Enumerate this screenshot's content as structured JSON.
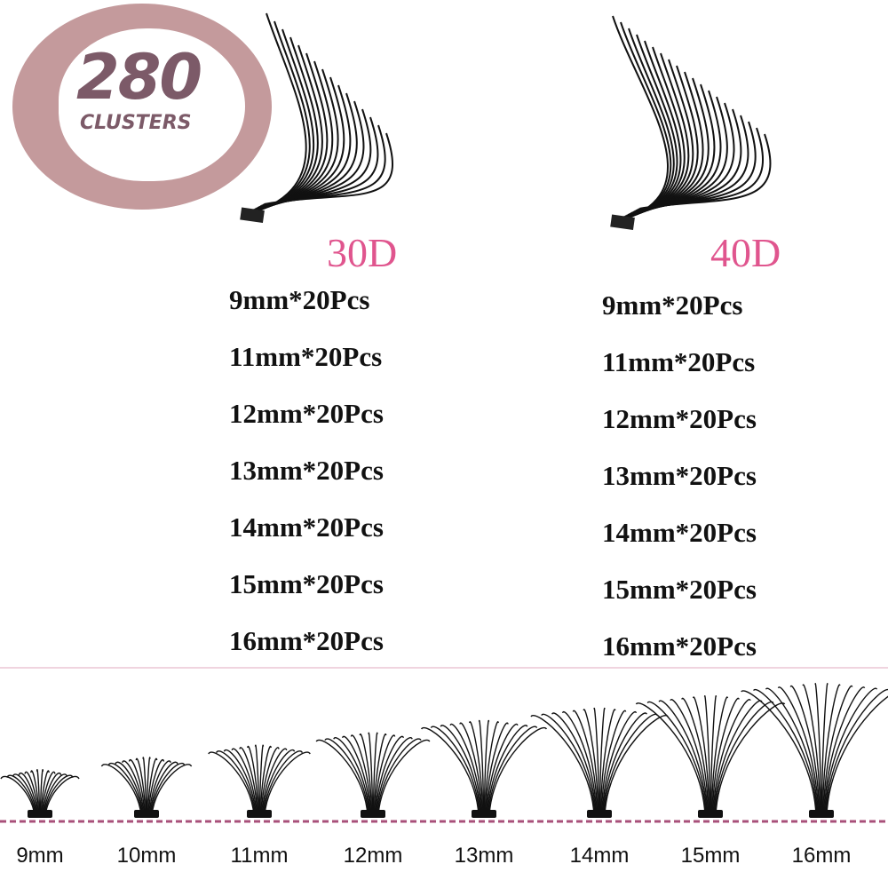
{
  "badge": {
    "count": "280",
    "unit": "CLUSTERS",
    "color": "#c49a9c",
    "text_color": "#7c5a68"
  },
  "products": [
    {
      "label": "30D",
      "specs": [
        "9mm*20Pcs",
        "11mm*20Pcs",
        "12mm*20Pcs",
        "13mm*20Pcs",
        "14mm*20Pcs",
        "15mm*20Pcs",
        "16mm*20Pcs"
      ]
    },
    {
      "label": "40D",
      "specs": [
        "9mm*20Pcs",
        "11mm*20Pcs",
        "12mm*20Pcs",
        "13mm*20Pcs",
        "14mm*20Pcs",
        "15mm*20Pcs",
        "16mm*20Pcs"
      ]
    }
  ],
  "accent_color": "#e0558e",
  "length_scale": {
    "lengths": [
      "9mm",
      "10mm",
      "11mm",
      "12mm",
      "13mm",
      "14mm",
      "15mm",
      "16mm"
    ],
    "baseline_color": "#a8507a"
  }
}
